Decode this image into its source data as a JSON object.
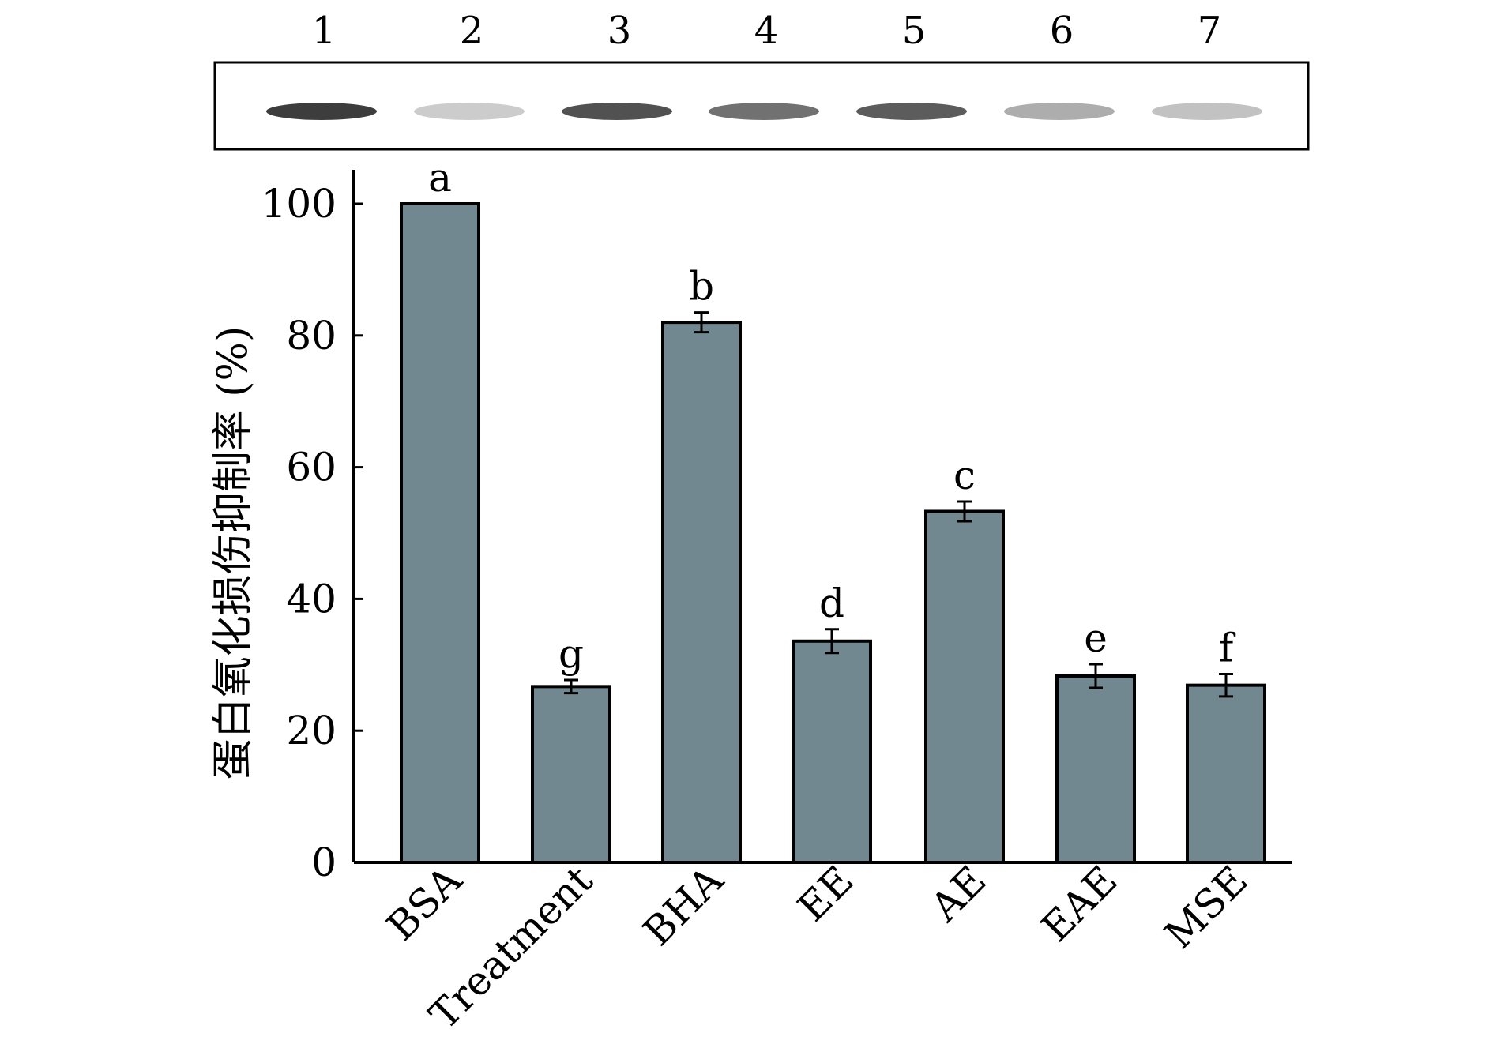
{
  "chart_data": {
    "type": "bar",
    "categories": [
      "BSA",
      "Treatment",
      "BHA",
      "EE",
      "AE",
      "EAE",
      "MSE"
    ],
    "values": [
      100,
      26.7,
      82.0,
      33.6,
      53.3,
      28.3,
      26.9
    ],
    "errors": [
      0,
      1.0,
      1.5,
      1.8,
      1.5,
      1.8,
      1.7
    ],
    "significance_letters": [
      "a",
      "g",
      "b",
      "d",
      "c",
      "e",
      "f"
    ],
    "ylabel": "蛋白氧化损伤抑制率 (%)",
    "xlabel": "",
    "ylim": [
      0,
      100
    ],
    "yticks": [
      0,
      20,
      40,
      60,
      80,
      100
    ],
    "bar_color": "#728890",
    "grid": false,
    "legend": "none"
  },
  "gel": {
    "lane_labels": [
      "1",
      "2",
      "3",
      "4",
      "5",
      "6",
      "7"
    ],
    "band_intensity": [
      0.95,
      0.25,
      0.85,
      0.7,
      0.8,
      0.4,
      0.3
    ]
  }
}
